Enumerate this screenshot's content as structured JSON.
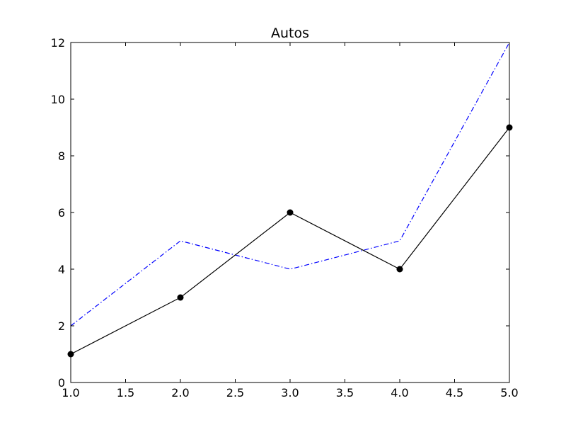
{
  "chart_data": {
    "type": "line",
    "title": "Autos",
    "xlabel": "",
    "ylabel": "",
    "x": [
      1.0,
      2.0,
      3.0,
      4.0,
      5.0
    ],
    "xlim": [
      1.0,
      5.0
    ],
    "ylim": [
      0,
      12
    ],
    "xticks": [
      "1.0",
      "1.5",
      "2.0",
      "2.5",
      "3.0",
      "3.5",
      "4.0",
      "4.5",
      "5.0"
    ],
    "yticks": [
      "0",
      "2",
      "4",
      "6",
      "8",
      "10",
      "12"
    ],
    "grid": false,
    "legend": "none",
    "series": [
      {
        "values": [
          2,
          5,
          4,
          5,
          12
        ],
        "color": "#0000ff",
        "line_style": "dash-dot",
        "marker": "none"
      },
      {
        "values": [
          1,
          3,
          6,
          4,
          9
        ],
        "color": "#000000",
        "line_style": "solid",
        "marker": "circle"
      }
    ]
  }
}
